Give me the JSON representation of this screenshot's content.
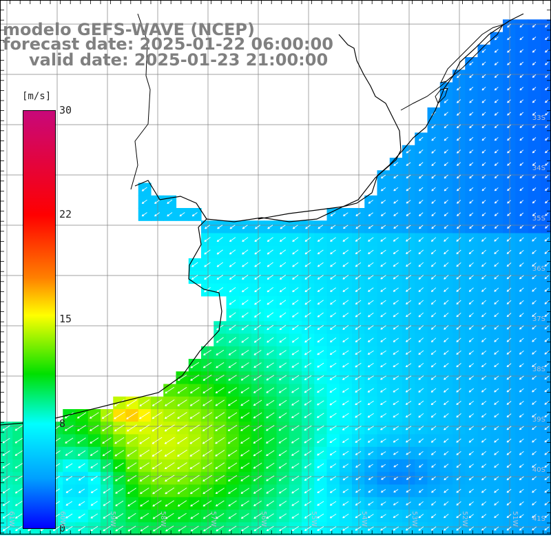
{
  "title": {
    "line1": "modelo GEFS-WAVE (NCEP)",
    "line2": "forecast date: 2025-01-22 06:00:00",
    "line3": "valid date: 2025-01-23 21:00:00"
  },
  "colorbar": {
    "unit": "[m/s]",
    "min": 0,
    "max": 30,
    "ticks": [
      "30",
      "22",
      "15",
      "8",
      "0"
    ],
    "tick_values": [
      30,
      22,
      15,
      8,
      0
    ],
    "colors": [
      "#0000ff",
      "#00a0ff",
      "#00ffff",
      "#00e000",
      "#ffff00",
      "#ff8000",
      "#ff0000",
      "#c8087a"
    ]
  },
  "map": {
    "lat_labels": [
      "33S",
      "34S",
      "35S",
      "36S",
      "37S",
      "38S",
      "39S",
      "40S",
      "41S"
    ],
    "lon_labels": [
      "61W",
      "60W",
      "59W",
      "58W",
      "57W",
      "56W",
      "55W",
      "54W",
      "53W",
      "52W",
      "51W"
    ],
    "land_color": "#ffffff",
    "grid_color": "#808080",
    "arrow_color": "#ffffff",
    "prevailing_wind_direction": "from northeast"
  }
}
